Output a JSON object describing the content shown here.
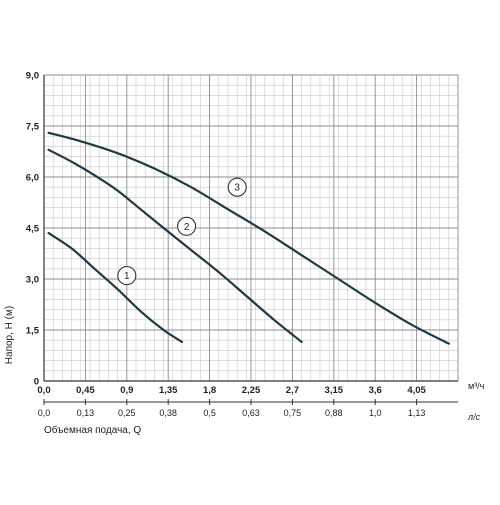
{
  "chart_data": {
    "type": "line",
    "ylabel": "Напор, Н (м)",
    "xlabel": "Объемная подача, Q",
    "x_unit_top": "м³/ч",
    "x_unit_bottom": "л/с",
    "xlim": [
      0,
      4.5
    ],
    "ylim": [
      0,
      9
    ],
    "grid": true,
    "y_ticks": [
      0,
      1.5,
      3.0,
      4.5,
      6.0,
      7.5,
      9.0
    ],
    "y_tick_labels": [
      "0",
      "1,5",
      "3,0",
      "4,5",
      "6,0",
      "7,5",
      "9,0"
    ],
    "x_ticks": [
      0,
      0.45,
      0.9,
      1.35,
      1.8,
      2.25,
      2.7,
      3.15,
      3.6,
      4.05
    ],
    "x_tick_labels": [
      "0,0",
      "0,45",
      "0,9",
      "1,35",
      "1,8",
      "2,25",
      "2,7",
      "3,15",
      "3,6",
      "4,05"
    ],
    "x2_tick_labels": [
      "0,0",
      "0,13",
      "0,25",
      "0,38",
      "0,5",
      "0,63",
      "0,75",
      "0,88",
      "1,0",
      "1,13"
    ],
    "series": [
      {
        "name": "1",
        "x": [
          0.05,
          0.3,
          0.55,
          0.8,
          1.05,
          1.3,
          1.5
        ],
        "y": [
          4.35,
          3.9,
          3.3,
          2.7,
          2.05,
          1.5,
          1.15
        ]
      },
      {
        "name": "2",
        "x": [
          0.05,
          0.3,
          0.55,
          0.8,
          1.05,
          1.3,
          1.6,
          1.9,
          2.2,
          2.5,
          2.8
        ],
        "y": [
          6.8,
          6.45,
          6.05,
          5.6,
          5.05,
          4.5,
          3.85,
          3.2,
          2.5,
          1.8,
          1.15
        ]
      },
      {
        "name": "3",
        "x": [
          0.05,
          0.4,
          0.8,
          1.2,
          1.6,
          2.0,
          2.4,
          2.8,
          3.2,
          3.6,
          4.0,
          4.4
        ],
        "y": [
          7.3,
          7.05,
          6.7,
          6.25,
          5.7,
          5.05,
          4.4,
          3.7,
          3.0,
          2.3,
          1.65,
          1.1
        ]
      }
    ],
    "curve_labels": [
      {
        "text": "1",
        "x": 0.9,
        "y": 3.1
      },
      {
        "text": "2",
        "x": 1.55,
        "y": 4.55
      },
      {
        "text": "3",
        "x": 2.1,
        "y": 5.7
      }
    ]
  }
}
